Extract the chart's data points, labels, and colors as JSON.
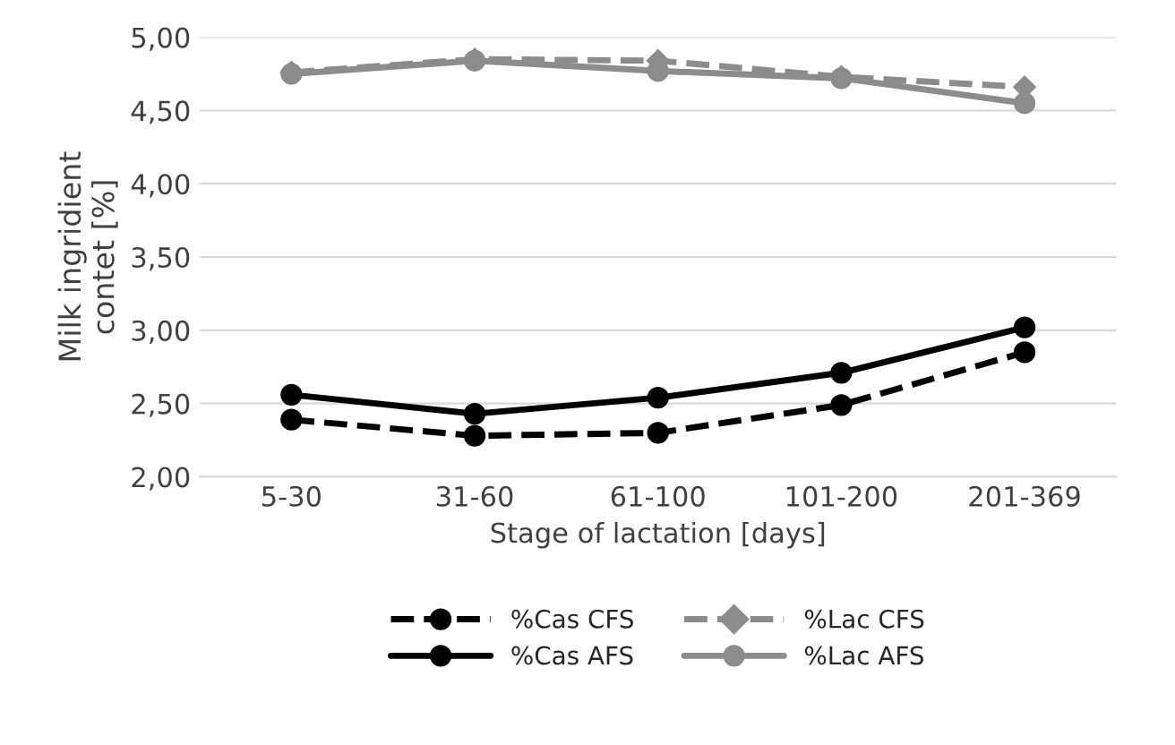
{
  "chart_data": {
    "type": "line",
    "xlabel": "Stage of lactation [days]",
    "ylabel": "Milk ingridient\ncontet [%]",
    "categories": [
      "5-30",
      "31-60",
      "61-100",
      "101-200",
      "201-369"
    ],
    "series": [
      {
        "name": "%Cas CFS",
        "color": "#000000",
        "line_style": "dashed",
        "marker": "circle",
        "values": [
          2.39,
          2.28,
          2.3,
          2.49,
          2.85
        ]
      },
      {
        "name": "%Cas AFS",
        "color": "#000000",
        "line_style": "solid",
        "marker": "circle",
        "values": [
          2.56,
          2.43,
          2.54,
          2.71,
          3.02
        ]
      },
      {
        "name": "%Lac CFS",
        "color": "#8c8c8c",
        "line_style": "dashed",
        "marker": "diamond",
        "values": [
          4.76,
          4.85,
          4.84,
          4.73,
          4.66
        ]
      },
      {
        "name": "%Lac AFS",
        "color": "#8c8c8c",
        "line_style": "solid",
        "marker": "circle",
        "values": [
          4.75,
          4.84,
          4.77,
          4.72,
          4.55
        ]
      }
    ],
    "ylim": [
      2,
      5
    ],
    "yticks": [
      {
        "value": 2,
        "label": "2,00"
      },
      {
        "value": 2.5,
        "label": "2,50"
      },
      {
        "value": 3,
        "label": "3,00"
      },
      {
        "value": 3.5,
        "label": "3,50"
      },
      {
        "value": 4,
        "label": "4,00"
      },
      {
        "value": 4.5,
        "label": "4,50"
      },
      {
        "value": 5,
        "label": "5,00"
      }
    ],
    "grid": "y",
    "legend": "bottom"
  }
}
